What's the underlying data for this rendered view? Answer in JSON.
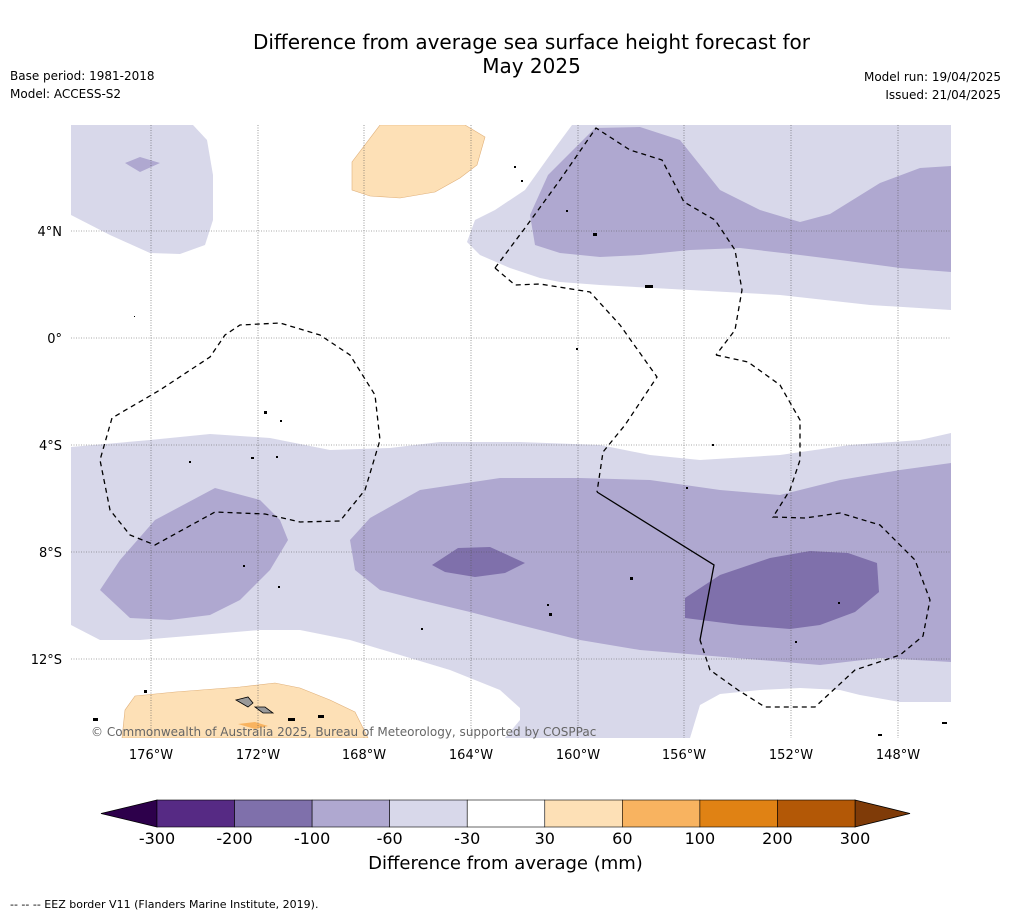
{
  "title_line1": "Difference from average sea surface height forecast for",
  "title_line2": "May 2025",
  "meta_left": [
    "Base period: 1981-2018",
    "Model: ACCESS-S2"
  ],
  "meta_right": [
    "Model run: 19/04/2025",
    "Issued: 21/04/2025"
  ],
  "axis": {
    "lat_ticks": [
      "4°N",
      "0°",
      "4°S",
      "8°S",
      "12°S"
    ],
    "lon_ticks": [
      "176°W",
      "172°W",
      "168°W",
      "164°W",
      "160°W",
      "156°W",
      "152°W",
      "148°W"
    ]
  },
  "copyright": "© Commonwealth of Australia 2025, Bureau of Meteorology, supported by COSPPac",
  "colorbar": {
    "label": "Difference from average (mm)",
    "ticks": [
      "-300",
      "-200",
      "-100",
      "-60",
      "-30",
      "30",
      "60",
      "100",
      "200",
      "300"
    ],
    "colors": [
      "#562a84",
      "#7f70ab",
      "#afa8d0",
      "#d8d8ea",
      "#ffffff",
      "#fde0b6",
      "#f8b360",
      "#e08214",
      "#b35806"
    ],
    "under_color": "#2d004b",
    "over_color": "#7f3b08"
  },
  "legend_text": "--  --  -- EEZ border V11 (Flanders Marine Institute, 2019)."
}
